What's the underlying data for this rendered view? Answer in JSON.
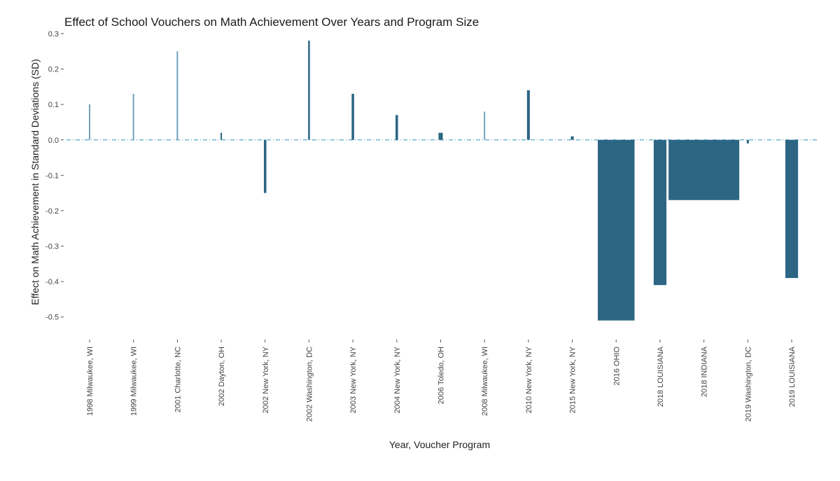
{
  "chart_data": {
    "type": "bar",
    "title": "Effect of School Vouchers on Math Achievement Over Years and Program Size",
    "xlabel": "Year, Voucher Program",
    "ylabel": "Effect on Math Achievement in Standard Deviations (SD)",
    "ylim": [
      -0.55,
      0.3
    ],
    "yticks": [
      {
        "value": 0.3,
        "label": "0.3"
      },
      {
        "value": 0.2,
        "label": "0.2"
      },
      {
        "value": 0.1,
        "label": "0.1"
      },
      {
        "value": 0.0,
        "label": "0.0"
      },
      {
        "value": -0.1,
        "label": "-0.1"
      },
      {
        "value": -0.2,
        "label": "-0.2"
      },
      {
        "value": -0.3,
        "label": "-0.3"
      },
      {
        "value": -0.4,
        "label": "-0.4"
      },
      {
        "value": -0.5,
        "label": "-0.5"
      }
    ],
    "bar_width_encodes": "program size (relative)",
    "reference_line": {
      "y": 0.0,
      "style": "dash-dot",
      "color": "#5aa9c9"
    },
    "bars": [
      {
        "category": "1998 Milwaukee, WI",
        "value": 0.1,
        "size": 1.0,
        "color": "#6ea3bd"
      },
      {
        "category": "1999 Milwaukee, WI",
        "value": 0.13,
        "size": 1.0,
        "color": "#6ea3bd"
      },
      {
        "category": "2001 Charlotte, NC",
        "value": 0.25,
        "size": 1.0,
        "color": "#6ea3bd"
      },
      {
        "category": "2002 Dayton, OH",
        "value": 0.02,
        "size": 2.0,
        "color": "#2c6684"
      },
      {
        "category": "2002 New York, NY",
        "value": -0.15,
        "size": 3.5,
        "color": "#2c6684"
      },
      {
        "category": "2002 Washington, DC",
        "value": 0.28,
        "size": 2.5,
        "color": "#2c6684"
      },
      {
        "category": "2003 New York, NY",
        "value": 0.13,
        "size": 3.5,
        "color": "#2c6684"
      },
      {
        "category": "2004 New York, NY",
        "value": 0.07,
        "size": 3.5,
        "color": "#2c6684"
      },
      {
        "category": "2006 Toledo, OH",
        "value": 0.02,
        "size": 6.0,
        "color": "#2c6684"
      },
      {
        "category": "2008 Milwaukee, WI",
        "value": 0.08,
        "size": 1.0,
        "color": "#6ea3bd"
      },
      {
        "category": "2010 New York, NY",
        "value": 0.14,
        "size": 4.0,
        "color": "#2c6684"
      },
      {
        "category": "2015 New York, NY",
        "value": 0.01,
        "size": 4.0,
        "color": "#2c6684"
      },
      {
        "category": "2016 OHIO",
        "value": -0.51,
        "size": 52.0,
        "color": "#2c6684"
      },
      {
        "category": "2018 LOUISIANA",
        "value": -0.41,
        "size": 18.0,
        "color": "#2c6684"
      },
      {
        "category": "2018 INDIANA",
        "value": -0.17,
        "size": 100.0,
        "color": "#2c6684"
      },
      {
        "category": "2019 Washington, DC",
        "value": -0.01,
        "size": 3.0,
        "color": "#2c6684"
      },
      {
        "category": "2019 LOUISIANA",
        "value": -0.39,
        "size": 18.0,
        "color": "#2c6684"
      }
    ]
  }
}
